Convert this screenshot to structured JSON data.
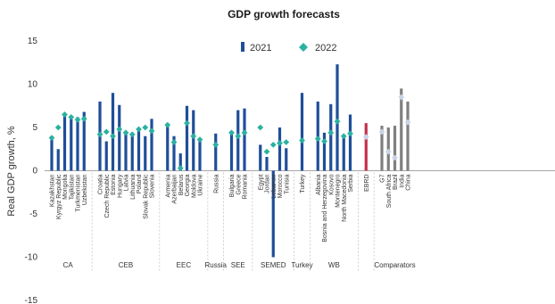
{
  "chart_data": {
    "type": "bar",
    "title": "GDP growth forecasts",
    "ylabel": "Real GDP growth, %",
    "ylim": [
      -15,
      15
    ],
    "yticks": [
      15,
      10,
      5,
      0,
      -5,
      -10,
      -15
    ],
    "legend_position": "top-center",
    "grid": false,
    "colors": {
      "series_2021": "#1f4e99",
      "series_2022": "#2ab1a0",
      "ebrd_bar": "#c4304a",
      "comparator_bar": "#7f7f7f",
      "comparator_marker": "#c9d3e8"
    },
    "series": [
      {
        "name": "2021",
        "marker": "bar"
      },
      {
        "name": "2022",
        "marker": "diamond"
      }
    ],
    "groups": [
      {
        "name": "CA",
        "countries": [
          {
            "name": "Kazakhstan",
            "v2021": 3.6,
            "v2022": 3.8
          },
          {
            "name": "Kyrgyz Republic",
            "v2021": 2.5,
            "v2022": 5.0
          },
          {
            "name": "Mongolia",
            "v2021": 6.5,
            "v2022": 6.5
          },
          {
            "name": "Tajikistan",
            "v2021": 6.3,
            "v2022": 6.2
          },
          {
            "name": "Turkmenistan",
            "v2021": 6.2,
            "v2022": 5.9
          },
          {
            "name": "Uzbekistan",
            "v2021": 6.8,
            "v2022": 6.0
          }
        ]
      },
      {
        "name": "CEB",
        "countries": [
          {
            "name": "Croatia",
            "v2021": 8.0,
            "v2022": 4.2
          },
          {
            "name": "Czech Republic",
            "v2021": 3.4,
            "v2022": 4.5
          },
          {
            "name": "Estonia",
            "v2021": 9.0,
            "v2022": 4.0
          },
          {
            "name": "Hungary",
            "v2021": 7.6,
            "v2022": 4.8
          },
          {
            "name": "Latvia",
            "v2021": 4.6,
            "v2022": 4.4
          },
          {
            "name": "Lithuania",
            "v2021": 4.4,
            "v2022": 4.2
          },
          {
            "name": "Poland",
            "v2021": 4.6,
            "v2022": 4.8
          },
          {
            "name": "Slovak Republic",
            "v2021": 4.0,
            "v2022": 5.0
          },
          {
            "name": "Slovenia",
            "v2021": 6.0,
            "v2022": 4.6
          }
        ]
      },
      {
        "name": "EEC",
        "countries": [
          {
            "name": "Armenia",
            "v2021": 5.4,
            "v2022": 5.3
          },
          {
            "name": "Azerbaijan",
            "v2021": 4.0,
            "v2022": 3.3
          },
          {
            "name": "Belarus",
            "v2021": 2.0,
            "v2022": 0.3
          },
          {
            "name": "Georgia",
            "v2021": 7.5,
            "v2022": 5.5
          },
          {
            "name": "Moldova",
            "v2021": 7.0,
            "v2022": 4.0
          },
          {
            "name": "Ukraine",
            "v2021": 3.6,
            "v2022": 3.6
          }
        ]
      },
      {
        "name": "Russia",
        "countries": [
          {
            "name": "Russia",
            "v2021": 4.3,
            "v2022": 3.0
          }
        ]
      },
      {
        "name": "SEE",
        "countries": [
          {
            "name": "Bulgaria",
            "v2021": 4.5,
            "v2022": 4.4
          },
          {
            "name": "Greece",
            "v2021": 7.0,
            "v2022": 4.0
          },
          {
            "name": "Romania",
            "v2021": 7.2,
            "v2022": 4.4
          }
        ]
      },
      {
        "name": "SEMED",
        "countries": [
          {
            "name": "Egypt",
            "v2021": 3.0,
            "v2022": 5.0
          },
          {
            "name": "Jordan",
            "v2021": 1.6,
            "v2022": 2.2
          },
          {
            "name": "Lebanon",
            "v2021": -10.0,
            "v2022": 3.0
          },
          {
            "name": "Morocco",
            "v2021": 5.0,
            "v2022": 3.2
          },
          {
            "name": "Tunisia",
            "v2021": 2.6,
            "v2022": 3.3
          }
        ]
      },
      {
        "name": "Turkey",
        "countries": [
          {
            "name": "Turkey",
            "v2021": 9.0,
            "v2022": 3.5
          }
        ]
      },
      {
        "name": "WB",
        "countries": [
          {
            "name": "Albania",
            "v2021": 8.0,
            "v2022": 3.7
          },
          {
            "name": "Bosnia and Herzegovina",
            "v2021": 4.4,
            "v2022": 3.4
          },
          {
            "name": "Kosovo",
            "v2021": 7.7,
            "v2022": 4.4
          },
          {
            "name": "Montenegro",
            "v2021": 12.3,
            "v2022": 5.7
          },
          {
            "name": "North Macedonia",
            "v2021": 4.0,
            "v2022": 4.0
          },
          {
            "name": "Serbia",
            "v2021": 6.5,
            "v2022": 4.3
          }
        ]
      },
      {
        "name": "",
        "countries": [
          {
            "name": "EBRD",
            "v2021": 5.5,
            "v2022": 3.9
          }
        ]
      },
      {
        "name": "Comparators",
        "countries": [
          {
            "name": "G7",
            "v2021": 5.2,
            "v2022": 4.5
          },
          {
            "name": "South Africa",
            "v2021": 5.0,
            "v2022": 2.2
          },
          {
            "name": "Brazil",
            "v2021": 5.2,
            "v2022": 1.5
          },
          {
            "name": "India",
            "v2021": 9.5,
            "v2022": 8.5
          },
          {
            "name": "China",
            "v2021": 8.0,
            "v2022": 5.6
          }
        ]
      }
    ]
  }
}
